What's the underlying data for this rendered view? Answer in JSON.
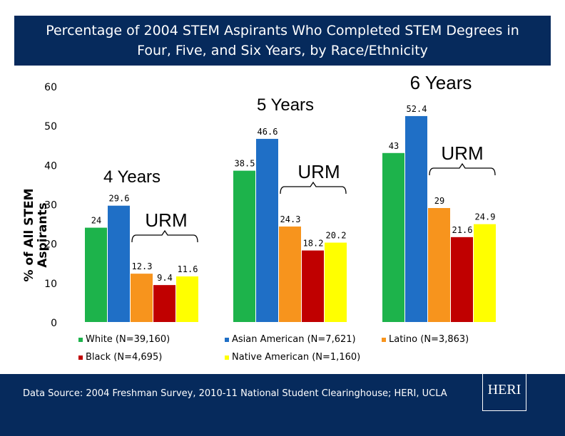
{
  "title": {
    "line1": "Percentage of 2004 STEM Aspirants Who Completed STEM Degrees in",
    "line2": "Four, Five, and Six Years, by Race/Ethnicity"
  },
  "footer": {
    "source": "Data Source: 2004 Freshman Survey, 2010-11 National Student Clearinghouse; HERI, UCLA",
    "logo_text": "HERI"
  },
  "chart_data": {
    "type": "bar",
    "ylabel": "% of All STEM Aspirants",
    "ylim": [
      0,
      60
    ],
    "yticks": [
      0,
      10,
      20,
      30,
      40,
      50,
      60
    ],
    "grid": false,
    "legend_placement": "bottom",
    "groups": [
      {
        "label": "4 Years",
        "urm_label": "URM"
      },
      {
        "label": "5 Years",
        "urm_label": "URM"
      },
      {
        "label": "6 Years",
        "urm_label": "URM"
      }
    ],
    "series": [
      {
        "name": "White (N=39,160)",
        "color": "#1db34b",
        "values": [
          24,
          38.5,
          43
        ],
        "labels": [
          "24",
          "38.5",
          "43"
        ]
      },
      {
        "name": "Asian American (N=7,621)",
        "color": "#1f6fc6",
        "values": [
          29.6,
          46.6,
          52.4
        ],
        "labels": [
          "29.6",
          "46.6",
          "52.4"
        ]
      },
      {
        "name": "Latino (N=3,863)",
        "color": "#f7941d",
        "values": [
          12.3,
          24.3,
          29
        ],
        "labels": [
          "12.3",
          "24.3",
          "29"
        ]
      },
      {
        "name": "Black (N=4,695)",
        "color": "#c00000",
        "values": [
          9.4,
          18.2,
          21.6
        ],
        "labels": [
          "9.4",
          "18.2",
          "21.6"
        ]
      },
      {
        "name": "Native American (N=1,160)",
        "color": "#ffff00",
        "values": [
          11.6,
          20.2,
          24.9
        ],
        "labels": [
          "11.6",
          "20.2",
          "24.9"
        ]
      }
    ]
  }
}
